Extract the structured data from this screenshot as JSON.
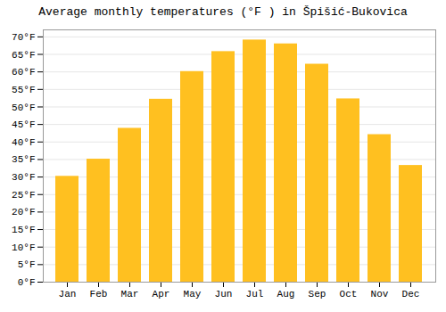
{
  "chart_data": {
    "type": "bar",
    "title": "Average monthly temperatures (°F ) in Špišić-Bukovica",
    "categories": [
      "Jan",
      "Feb",
      "Mar",
      "Apr",
      "May",
      "Jun",
      "Jul",
      "Aug",
      "Sep",
      "Oct",
      "Nov",
      "Dec"
    ],
    "values": [
      30.2,
      35.1,
      43.9,
      52.2,
      60.1,
      65.8,
      69.1,
      68.0,
      62.2,
      52.3,
      42.1,
      33.3
    ],
    "color": "#FFC020",
    "ylim": [
      0,
      72
    ],
    "yticks": [
      {
        "value": 0,
        "label": "0°F"
      },
      {
        "value": 5,
        "label": "5°F"
      },
      {
        "value": 10,
        "label": "10°F"
      },
      {
        "value": 15,
        "label": "15°F"
      },
      {
        "value": 20,
        "label": "20°F"
      },
      {
        "value": 25,
        "label": "25°F"
      },
      {
        "value": 30,
        "label": "30°F"
      },
      {
        "value": 35,
        "label": "35°F"
      },
      {
        "value": 40,
        "label": "40°F"
      },
      {
        "value": 45,
        "label": "45°F"
      },
      {
        "value": 50,
        "label": "50°F"
      },
      {
        "value": 55,
        "label": "55°F"
      },
      {
        "value": 60,
        "label": "60°F"
      },
      {
        "value": 65,
        "label": "65°F"
      },
      {
        "value": 70,
        "label": "70°F"
      }
    ],
    "grid": true
  }
}
